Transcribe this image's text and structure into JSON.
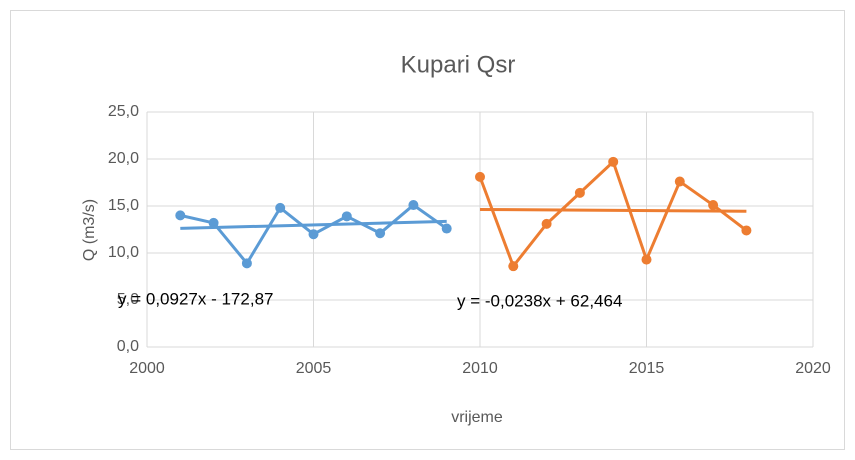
{
  "chart_data": {
    "type": "scatter",
    "title": "Kupari Qsr",
    "x_label": "vrijeme",
    "y_label": "Q (m3/s)",
    "xlim": [
      2000,
      2020
    ],
    "xticks": [
      2000,
      2005,
      2010,
      2015,
      2020
    ],
    "ylim": [
      0,
      25
    ],
    "yticks": [
      {
        "value": 0,
        "label": "0,0"
      },
      {
        "value": 5,
        "label": "5,0"
      },
      {
        "value": 10,
        "label": "10,0"
      },
      {
        "value": 15,
        "label": "15,0"
      },
      {
        "value": 20,
        "label": "20,0"
      },
      {
        "value": 25,
        "label": "25,0"
      }
    ],
    "grid": true,
    "series": [
      {
        "color": "#5b9bd5",
        "x": [
          2001,
          2002,
          2003,
          2004,
          2005,
          2006,
          2007,
          2008,
          2009
        ],
        "values": [
          14.0,
          13.2,
          8.9,
          14.8,
          12.0,
          13.9,
          12.1,
          15.1,
          12.6
        ]
      },
      {
        "color": "#ed7d31",
        "x": [
          2010,
          2011,
          2012,
          2013,
          2014,
          2015,
          2016,
          2017,
          2018
        ],
        "values": [
          18.1,
          8.6,
          13.1,
          16.4,
          19.7,
          9.3,
          17.6,
          15.1,
          12.4
        ]
      }
    ],
    "trendlines": [
      {
        "color": "#5b9bd5",
        "label": "y = 0,0927x - 172,87",
        "x": [
          2001,
          2009
        ],
        "values": [
          12.62,
          13.36
        ]
      },
      {
        "color": "#ed7d31",
        "label": "y = -0,0238x + 62,464",
        "x": [
          2010,
          2018
        ],
        "values": [
          14.63,
          14.44
        ]
      }
    ]
  }
}
